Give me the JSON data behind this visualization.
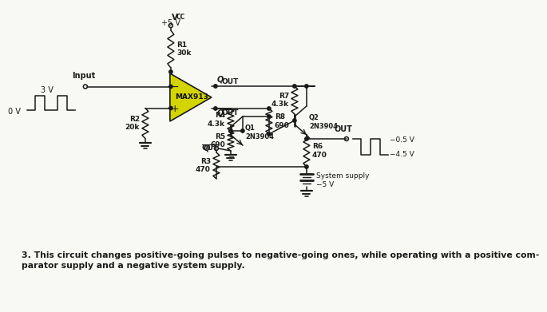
{
  "bg_color": "#f8f8f4",
  "line_color": "#1a1a1a",
  "triangle_fill": "#d4d400",
  "triangle_stroke": "#1a1a1a",
  "title_text": "3. This circuit changes positive-going pulses to negative-going ones, while operating with a positive com-\nparator supply and a negative system supply.",
  "title_fontsize": 8.0,
  "vcc_label": "V",
  "vcc_sub": "CC",
  "vcc_val": "+5 V",
  "comp_label": "MAX913",
  "r1_label": "R1\n30k",
  "r2_label": "R2\n20k",
  "r3_label": "R3\n470",
  "r4_label": "R4\n4.3k",
  "r5_label": "R5\n690",
  "r6_label": "R6\n470",
  "r7_label": "R7\n4.3k",
  "r8_label": "R8\n690",
  "q1_label": "Q1\n2N3904",
  "q2_label": "Q2\n2N3904",
  "input_label": "Input",
  "qout_label": "Q OUT",
  "qoutbar_label": "Q OUT",
  "out_terminal_label": "OUT",
  "outbar_terminal_label": "OUT",
  "sys_label": "System supply\n−5 V",
  "input_wave_0v": "0 V",
  "input_wave_3v": "3 V",
  "output_wave_neg05": "−0.5 V",
  "output_wave_neg45": "−4.5 V"
}
